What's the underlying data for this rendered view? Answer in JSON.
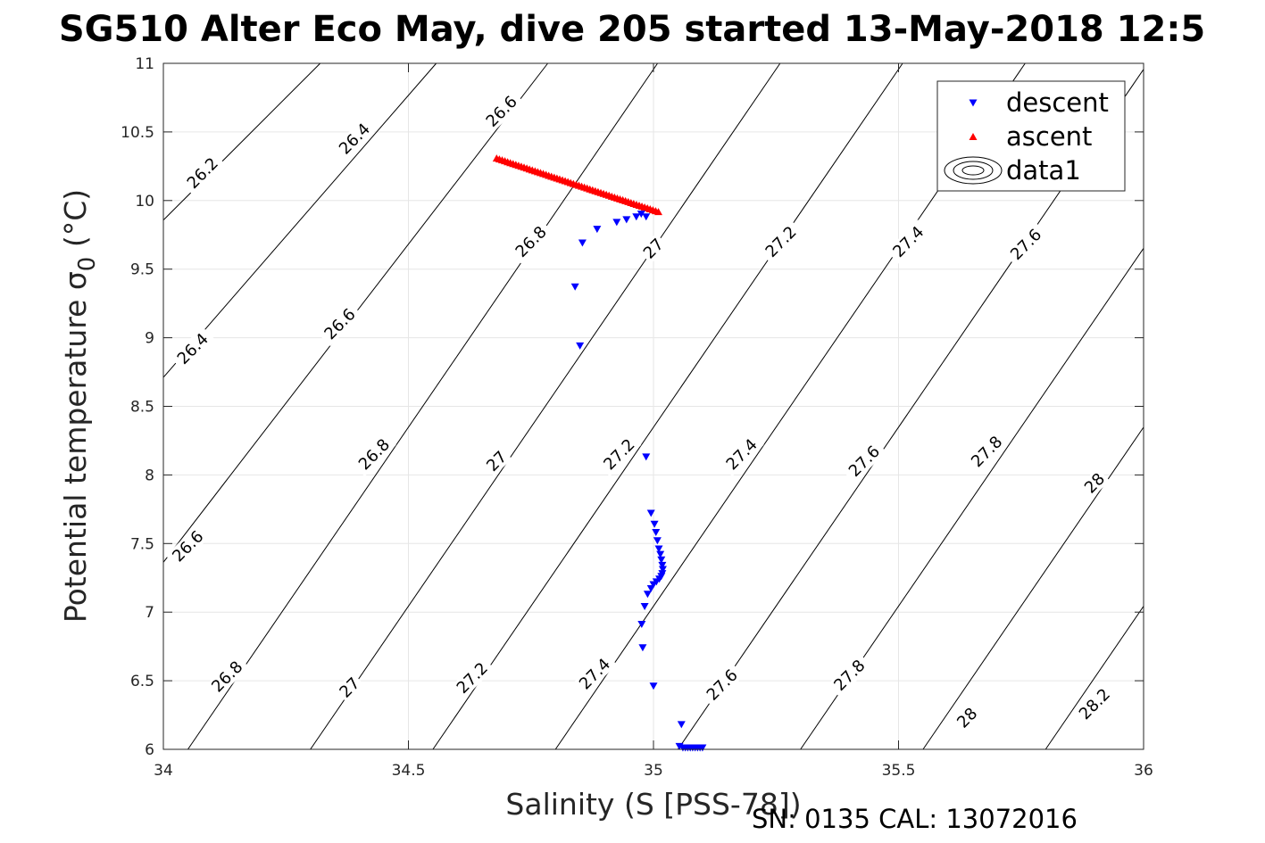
{
  "chart_data": {
    "type": "scatter",
    "title": "SG510 Alter Eco May, dive 205 started 13-May-2018 12:5",
    "xlabel": "Salinity (S [PSS-78])",
    "ylabel": "Potential temperature σ",
    "ylabel_subscript": "0",
    "ylabel_suffix": " (°C)",
    "xlim": [
      34,
      36
    ],
    "ylim": [
      6,
      11
    ],
    "xticks": [
      34,
      34.5,
      35,
      35.5,
      36
    ],
    "xtick_labels": [
      "34",
      "34.5",
      "35",
      "35.5",
      "36"
    ],
    "yticks": [
      6,
      6.5,
      7,
      7.5,
      8,
      8.5,
      9,
      9.5,
      10,
      10.5,
      11
    ],
    "ytick_labels": [
      "6",
      "6.5",
      "7",
      "7.5",
      "8",
      "8.5",
      "9",
      "9.5",
      "10",
      "10.5",
      "11"
    ],
    "grid": true,
    "legend_position": "top-right",
    "series": [
      {
        "name": "descent",
        "marker": "triangle-down",
        "color": "#0000ff",
        "points": [
          [
            34.985,
            9.88
          ],
          [
            34.975,
            9.9
          ],
          [
            34.965,
            9.88
          ],
          [
            34.945,
            9.86
          ],
          [
            34.925,
            9.84
          ],
          [
            34.885,
            9.79
          ],
          [
            34.855,
            9.69
          ],
          [
            34.84,
            9.37
          ],
          [
            34.85,
            8.94
          ],
          [
            34.985,
            8.13
          ],
          [
            34.995,
            7.72
          ],
          [
            35.002,
            7.64
          ],
          [
            35.005,
            7.58
          ],
          [
            35.008,
            7.52
          ],
          [
            35.011,
            7.46
          ],
          [
            35.014,
            7.42
          ],
          [
            35.016,
            7.38
          ],
          [
            35.018,
            7.34
          ],
          [
            35.019,
            7.31
          ],
          [
            35.018,
            7.28
          ],
          [
            35.016,
            7.26
          ],
          [
            35.012,
            7.24
          ],
          [
            35.006,
            7.22
          ],
          [
            35.0,
            7.2
          ],
          [
            34.995,
            7.17
          ],
          [
            34.988,
            7.13
          ],
          [
            34.982,
            7.04
          ],
          [
            34.976,
            6.91
          ],
          [
            34.978,
            6.74
          ],
          [
            35.0,
            6.46
          ],
          [
            35.057,
            6.18
          ],
          [
            35.053,
            6.02
          ],
          [
            35.06,
            6.01
          ],
          [
            35.065,
            6.01
          ],
          [
            35.07,
            6.01
          ],
          [
            35.075,
            6.01
          ],
          [
            35.08,
            6.01
          ],
          [
            35.085,
            6.01
          ],
          [
            35.09,
            6.01
          ],
          [
            35.095,
            6.01
          ],
          [
            35.1,
            6.01
          ]
        ]
      },
      {
        "name": "ascent",
        "marker": "triangle-up",
        "color": "#ff0000",
        "line": {
          "x0": 34.68,
          "y0": 10.31,
          "x1": 35.01,
          "y1": 9.92,
          "count": 60
        }
      },
      {
        "name": "data1",
        "type": "contour",
        "color": "#000000",
        "sigma_levels": [
          26.2,
          26.4,
          26.6,
          26.8,
          27.0,
          27.2,
          27.4,
          27.6,
          27.8,
          28.0,
          28.2
        ],
        "lines": [
          {
            "label": "26.2",
            "p": [
              [
                33.9,
                9.5
              ],
              [
                34.6,
                12.0
              ]
            ]
          },
          {
            "label": "26.4",
            "p": [
              [
                33.9,
                8.3
              ],
              [
                34.8,
                12.0
              ]
            ]
          },
          {
            "label": "26.6",
            "p": [
              [
                33.9,
                6.9
              ],
              [
                35.0,
                12.0
              ]
            ]
          },
          {
            "label": "26.8",
            "p": [
              [
                34.05,
                6.0
              ],
              [
                35.2,
                12.0
              ]
            ]
          },
          {
            "label": "27",
            "p": [
              [
                34.3,
                6.0
              ],
              [
                35.45,
                12.0
              ]
            ]
          },
          {
            "label": "27.2",
            "p": [
              [
                34.55,
                6.0
              ],
              [
                35.7,
                12.0
              ]
            ]
          },
          {
            "label": "27.4",
            "p": [
              [
                34.8,
                6.0
              ],
              [
                35.95,
                12.0
              ]
            ]
          },
          {
            "label": "27.6",
            "p": [
              [
                35.05,
                6.0
              ],
              [
                36.2,
                12.0
              ]
            ]
          },
          {
            "label": "27.8",
            "p": [
              [
                35.3,
                6.0
              ],
              [
                36.45,
                12.0
              ]
            ]
          },
          {
            "label": "28",
            "p": [
              [
                35.55,
                6.0
              ],
              [
                36.7,
                12.0
              ]
            ]
          },
          {
            "label": "28.2",
            "p": [
              [
                35.8,
                6.0
              ],
              [
                36.95,
                12.0
              ]
            ]
          }
        ],
        "labels": [
          {
            "text": "26.2",
            "x": 34.08,
            "y": 10.2
          },
          {
            "text": "26.4",
            "x": 34.39,
            "y": 10.45
          },
          {
            "text": "26.6",
            "x": 34.69,
            "y": 10.65
          },
          {
            "text": "26.4",
            "x": 34.06,
            "y": 8.92
          },
          {
            "text": "26.6",
            "x": 34.36,
            "y": 9.1
          },
          {
            "text": "26.8",
            "x": 34.75,
            "y": 9.7
          },
          {
            "text": "26.6",
            "x": 34.05,
            "y": 7.48
          },
          {
            "text": "26.8",
            "x": 34.43,
            "y": 8.15
          },
          {
            "text": "27",
            "x": 35.0,
            "y": 9.65
          },
          {
            "text": "26.8",
            "x": 34.13,
            "y": 6.53
          },
          {
            "text": "27",
            "x": 34.68,
            "y": 8.1
          },
          {
            "text": "27.2",
            "x": 35.26,
            "y": 9.7
          },
          {
            "text": "27",
            "x": 34.38,
            "y": 6.45
          },
          {
            "text": "27.2",
            "x": 34.93,
            "y": 8.15
          },
          {
            "text": "27.4",
            "x": 35.52,
            "y": 9.7
          },
          {
            "text": "27.2",
            "x": 34.63,
            "y": 6.52
          },
          {
            "text": "27.4",
            "x": 35.18,
            "y": 8.15
          },
          {
            "text": "27.6",
            "x": 35.76,
            "y": 9.68
          },
          {
            "text": "27.4",
            "x": 34.88,
            "y": 6.55
          },
          {
            "text": "27.6",
            "x": 35.43,
            "y": 8.1
          },
          {
            "text": "27.6",
            "x": 35.14,
            "y": 6.47
          },
          {
            "text": "27.8",
            "x": 35.68,
            "y": 8.17
          },
          {
            "text": "27.8",
            "x": 35.4,
            "y": 6.54
          },
          {
            "text": "28",
            "x": 35.9,
            "y": 7.94
          },
          {
            "text": "28",
            "x": 35.64,
            "y": 6.23
          },
          {
            "text": "28.2",
            "x": 35.9,
            "y": 6.33
          }
        ]
      }
    ]
  },
  "footer_text": "SN: 0135  CAL: 13072016"
}
